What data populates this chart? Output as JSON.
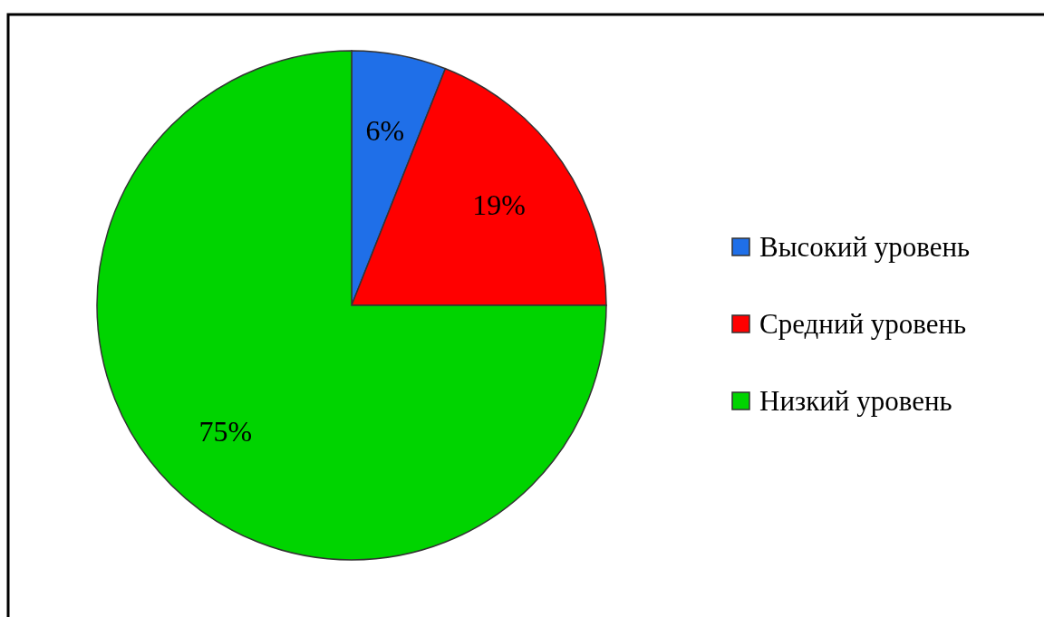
{
  "chart_data": {
    "type": "pie",
    "categories": [
      "Высокий уровень",
      "Средний уровень",
      "Низкий уровень"
    ],
    "values": [
      6,
      19,
      75
    ],
    "colors": [
      "#1f6fe8",
      "#ff0000",
      "#00d400"
    ],
    "value_labels": [
      "6%",
      "19%",
      "75%"
    ],
    "legend": "right"
  }
}
